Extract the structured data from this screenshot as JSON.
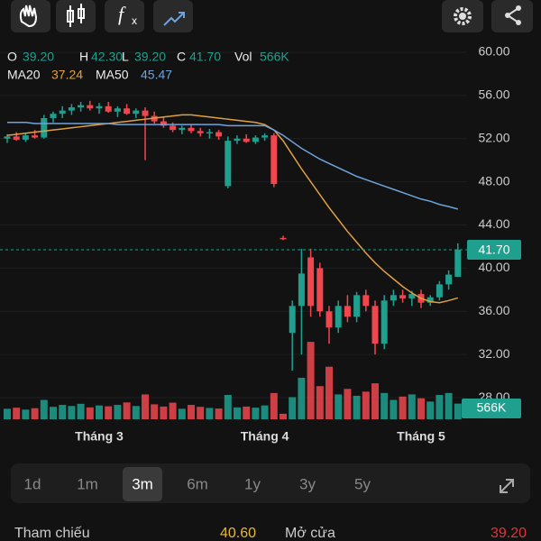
{
  "chart_data": {
    "type": "candlestick",
    "header": [
      {
        "key": "O",
        "label": "39.20"
      },
      {
        "key": "H",
        "label": "42.30"
      },
      {
        "key": "L",
        "label": "39.20"
      },
      {
        "key": "C",
        "label": "41.70"
      },
      {
        "key": "Vol",
        "label": "566K"
      }
    ],
    "categories": [
      null,
      null,
      null,
      null,
      null,
      null,
      null,
      null,
      null,
      null,
      "Tháng 3",
      null,
      null,
      null,
      null,
      null,
      null,
      null,
      null,
      null,
      null,
      null,
      null,
      null,
      null,
      null,
      null,
      null,
      "Tháng 4",
      null,
      null,
      null,
      null,
      null,
      null,
      null,
      null,
      null,
      null,
      null,
      null,
      null,
      null,
      null,
      null,
      "Tháng 5",
      null,
      null,
      null,
      null
    ],
    "open": [
      52.0,
      52.2,
      51.9,
      52.3,
      52.1,
      53.9,
      54.3,
      54.6,
      54.9,
      55.1,
      54.8,
      55.0,
      54.5,
      54.8,
      54.3,
      54.6,
      54.1,
      53.6,
      53.2,
      52.8,
      53.0,
      52.7,
      52.5,
      52.6,
      47.6,
      51.8,
      52.0,
      51.7,
      52.1,
      52.3,
      42.8,
      34.0,
      36.5,
      41.0,
      40.0,
      36.0,
      34.5,
      36.5,
      35.5,
      37.5,
      36.5,
      33.0,
      37.0,
      37.5,
      37.2,
      37.6,
      36.8,
      37.3,
      38.5,
      39.2
    ],
    "high": [
      52.4,
      52.6,
      52.5,
      52.8,
      54.2,
      54.5,
      55.0,
      55.2,
      55.4,
      55.5,
      55.3,
      55.4,
      55.0,
      55.2,
      54.8,
      54.9,
      54.5,
      54.0,
      53.5,
      53.2,
      53.3,
      53.0,
      52.9,
      52.8,
      52.2,
      52.3,
      52.4,
      52.3,
      52.5,
      52.5,
      43.0,
      37.0,
      41.8,
      41.8,
      40.5,
      36.5,
      37.0,
      37.5,
      37.8,
      38.0,
      37.0,
      37.5,
      38.0,
      38.0,
      37.9,
      38.0,
      37.5,
      38.8,
      39.8,
      42.3
    ],
    "low": [
      51.6,
      51.8,
      51.7,
      52.0,
      52.0,
      53.5,
      53.9,
      54.2,
      54.5,
      54.6,
      54.3,
      54.4,
      54.0,
      54.2,
      53.9,
      50.0,
      53.4,
      53.0,
      52.6,
      52.4,
      52.5,
      52.2,
      52.0,
      51.9,
      47.4,
      51.5,
      51.6,
      51.5,
      51.8,
      47.5,
      42.6,
      30.5,
      32.0,
      35.5,
      35.5,
      33.0,
      34.0,
      35.0,
      35.0,
      36.0,
      32.0,
      32.5,
      36.5,
      36.8,
      36.5,
      36.3,
      36.5,
      37.0,
      38.0,
      39.2
    ],
    "close": [
      52.2,
      51.9,
      52.3,
      52.1,
      53.9,
      54.3,
      54.6,
      54.9,
      55.1,
      54.8,
      55.0,
      54.5,
      54.8,
      54.3,
      54.6,
      54.1,
      53.6,
      53.2,
      52.8,
      53.0,
      52.7,
      52.5,
      52.6,
      52.2,
      51.8,
      52.0,
      51.7,
      52.1,
      52.3,
      47.8,
      42.7,
      36.5,
      39.5,
      36.5,
      36.0,
      34.5,
      36.5,
      35.5,
      37.5,
      36.5,
      33.0,
      37.0,
      37.5,
      37.2,
      37.6,
      36.8,
      37.3,
      38.5,
      39.4,
      41.7
    ],
    "volume": [
      380,
      420,
      350,
      400,
      700,
      450,
      520,
      480,
      560,
      430,
      500,
      470,
      520,
      610,
      480,
      900,
      540,
      460,
      600,
      380,
      520,
      450,
      410,
      390,
      880,
      430,
      460,
      420,
      500,
      950,
      200,
      800,
      1500,
      2800,
      1200,
      1900,
      900,
      1100,
      850,
      1000,
      1300,
      950,
      700,
      820,
      900,
      760,
      640,
      880,
      950,
      566
    ],
    "vlim": [
      0,
      3000
    ],
    "series": [
      {
        "name": "MA20",
        "color": "#e0a040",
        "values": [
          52.3,
          52.4,
          52.5,
          52.6,
          52.7,
          52.8,
          52.9,
          53.0,
          53.1,
          53.2,
          53.3,
          53.4,
          53.5,
          53.6,
          53.7,
          53.8,
          53.9,
          54.0,
          54.1,
          54.2,
          54.2,
          54.1,
          54.0,
          53.9,
          53.8,
          53.7,
          53.6,
          53.5,
          53.3,
          52.8,
          51.8,
          50.5,
          49.2,
          48.0,
          46.8,
          45.6,
          44.5,
          43.4,
          42.4,
          41.4,
          40.5,
          39.7,
          39.0,
          38.3,
          37.7,
          37.2,
          36.9,
          36.8,
          37.0,
          37.24
        ]
      },
      {
        "name": "MA50",
        "color": "#6fa3dc",
        "values": [
          53.5,
          53.5,
          53.5,
          53.4,
          53.4,
          53.4,
          53.4,
          53.4,
          53.4,
          53.4,
          53.4,
          53.4,
          53.3,
          53.3,
          53.3,
          53.3,
          53.3,
          53.3,
          53.3,
          53.3,
          53.3,
          53.3,
          53.3,
          53.3,
          53.2,
          53.2,
          53.2,
          53.2,
          53.2,
          52.8,
          52.3,
          51.7,
          51.1,
          50.6,
          50.1,
          49.7,
          49.3,
          48.9,
          48.5,
          48.2,
          47.9,
          47.6,
          47.3,
          47.0,
          46.7,
          46.4,
          46.2,
          45.9,
          45.7,
          45.47
        ]
      }
    ],
    "up_color": "#1fa08f",
    "down_color": "#f0474f",
    "ylim": [
      26,
      61.5
    ],
    "yticks": [
      {
        "value": 60,
        "label": "60.00"
      },
      {
        "value": 56,
        "label": "56.00"
      },
      {
        "value": 52,
        "label": "52.00"
      },
      {
        "value": 48,
        "label": "48.00"
      },
      {
        "value": 44,
        "label": "44.00"
      },
      {
        "value": 40,
        "label": "40.00"
      },
      {
        "value": 36,
        "label": "36.00"
      },
      {
        "value": 32,
        "label": "32.00"
      },
      {
        "value": 28,
        "label": "28.00"
      }
    ],
    "grid": true
  },
  "timeframes": [
    "1d",
    "1m",
    "3m",
    "6m",
    "1y",
    "3y",
    "5y"
  ],
  "selected_timeframe": 2,
  "info": [
    {
      "label": "Tham chiếu",
      "value": "40.60"
    },
    {
      "label": "Mở cửa",
      "value": "39.20"
    }
  ]
}
